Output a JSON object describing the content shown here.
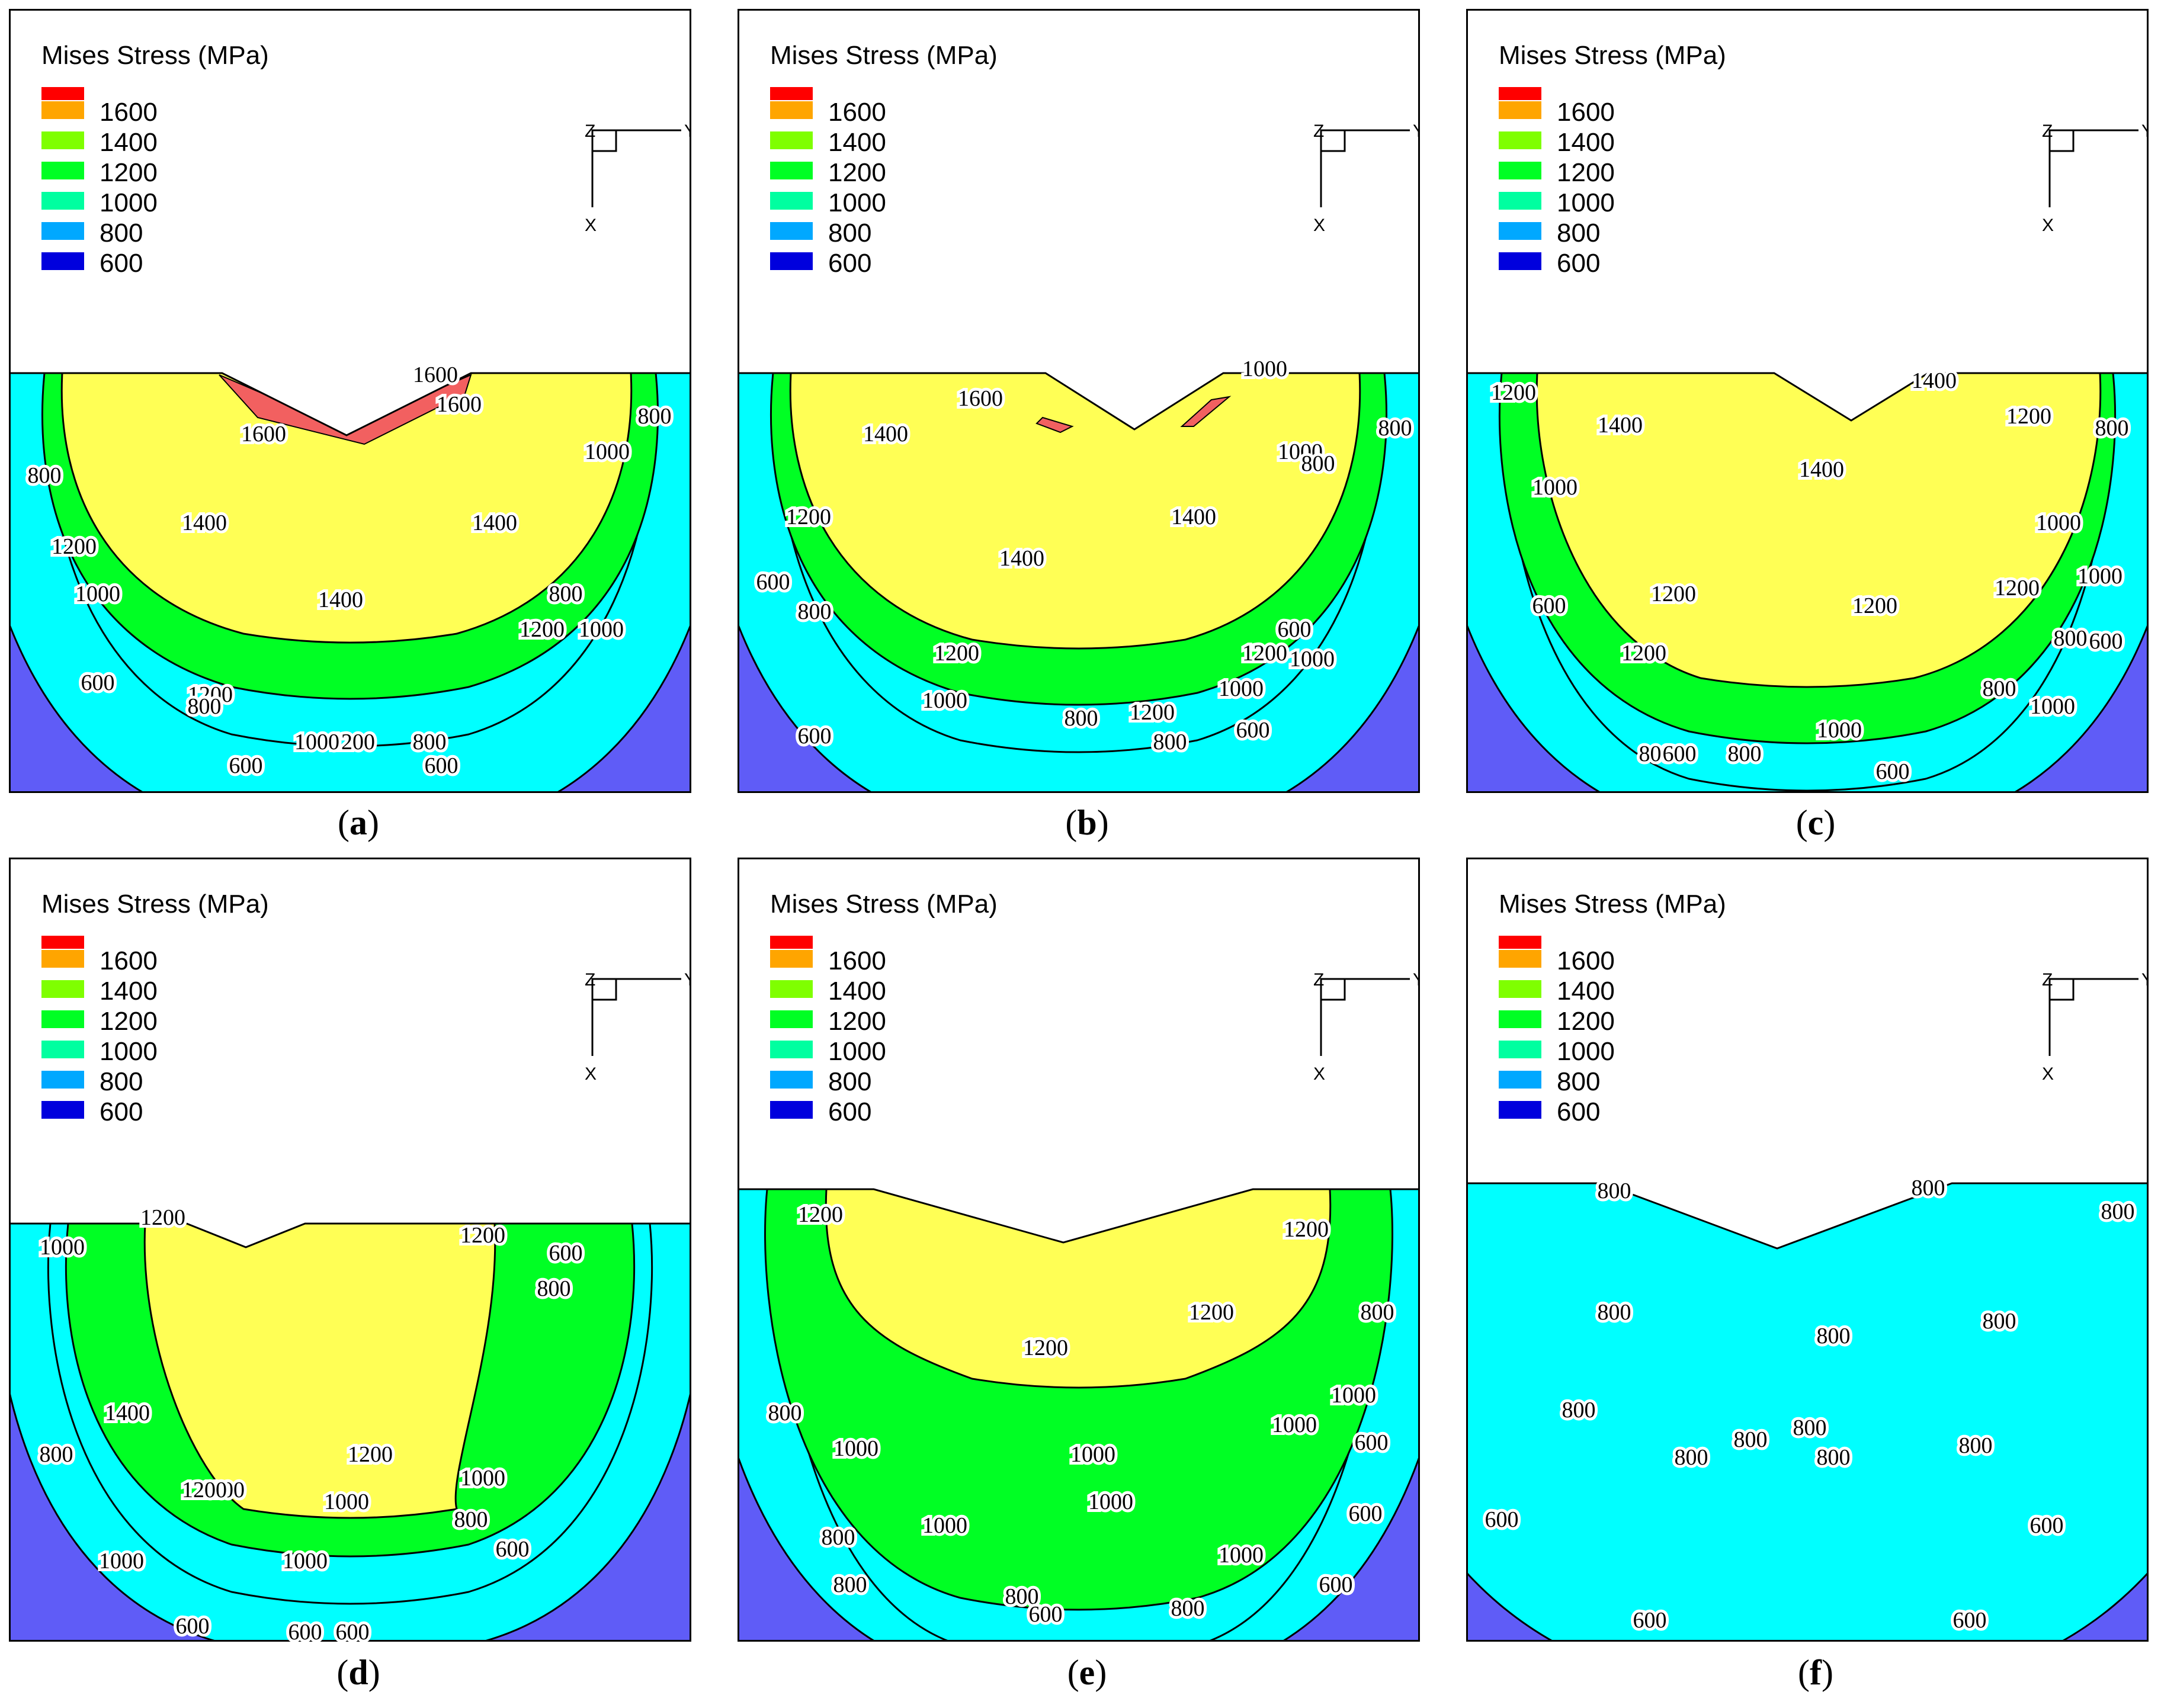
{
  "figure": {
    "legend_title": "Mises Stress (MPa)",
    "axis_labels": {
      "z": "Z",
      "y": "Y",
      "x": "X"
    }
  },
  "colors": {
    "red": "#ff0000",
    "orange": "#ffa500",
    "lime": "#7fff00",
    "green": "#00ff24",
    "teal": "#00ffa0",
    "sky": "#00a8ff",
    "navy": "#0000dd",
    "fill_1600": "#f26060",
    "fill_1400": "#ffff55",
    "fill_1200": "#00ff24",
    "fill_1000": "#00ffff",
    "fill_low": "#5f5cf7"
  },
  "chart_data": [
    {
      "type": "heatmap",
      "caption": "a",
      "title": "Mises Stress (MPa)",
      "legend": [
        "1600",
        "1400",
        "1200",
        "1000",
        "800",
        "600"
      ],
      "contour_labels": [
        "1600",
        "1600",
        "1600",
        "1400",
        "1400",
        "1400",
        "1200",
        "1200",
        "1200",
        "1200",
        "1000",
        "1000",
        "1000",
        "1000",
        "800",
        "800",
        "800",
        "800",
        "800",
        "600",
        "600",
        "600"
      ]
    },
    {
      "type": "heatmap",
      "caption": "b",
      "title": "Mises Stress (MPa)",
      "legend": [
        "1600",
        "1400",
        "1200",
        "1000",
        "800",
        "600"
      ],
      "contour_labels": [
        "1600",
        "1000",
        "1400",
        "1400",
        "1400",
        "1200",
        "1200",
        "1200",
        "1200",
        "1000",
        "1000",
        "1000",
        "1000",
        "800",
        "800",
        "800",
        "800",
        "800",
        "600",
        "600",
        "600",
        "600"
      ]
    },
    {
      "type": "heatmap",
      "caption": "c",
      "title": "Mises Stress (MPa)",
      "legend": [
        "1600",
        "1400",
        "1200",
        "1000",
        "800",
        "600"
      ],
      "contour_labels": [
        "1400",
        "1400",
        "1400",
        "1200",
        "1200",
        "1200",
        "1200",
        "1200",
        "1200",
        "1000",
        "1000",
        "1000",
        "1000",
        "1000",
        "800",
        "800",
        "800",
        "800",
        "800",
        "600",
        "600",
        "600",
        "600"
      ]
    },
    {
      "type": "heatmap",
      "caption": "d",
      "title": "Mises Stress (MPa)",
      "legend": [
        "1600",
        "1400",
        "1200",
        "1000",
        "800",
        "600"
      ],
      "contour_labels": [
        "1400",
        "1200",
        "1200",
        "1200",
        "1200",
        "1200",
        "1000",
        "1000",
        "1000",
        "1000",
        "1000",
        "800",
        "800",
        "800",
        "600",
        "600",
        "600",
        "600",
        "600"
      ]
    },
    {
      "type": "heatmap",
      "caption": "e",
      "title": "Mises Stress (MPa)",
      "legend": [
        "1600",
        "1400",
        "1200",
        "1000",
        "800",
        "600"
      ],
      "contour_labels": [
        "1200",
        "1200",
        "1200",
        "1200",
        "1000",
        "1000",
        "1000",
        "1000",
        "1000",
        "1000",
        "1000",
        "800",
        "800",
        "800",
        "800",
        "800",
        "800",
        "600",
        "600",
        "600",
        "600"
      ]
    },
    {
      "type": "heatmap",
      "caption": "f",
      "title": "Mises Stress (MPa)",
      "legend": [
        "1600",
        "1400",
        "1200",
        "1000",
        "800",
        "600"
      ],
      "contour_labels": [
        "800",
        "800",
        "800",
        "800",
        "800",
        "800",
        "800",
        "800",
        "800",
        "800",
        "800",
        "800",
        "600",
        "600",
        "600",
        "600"
      ]
    }
  ]
}
